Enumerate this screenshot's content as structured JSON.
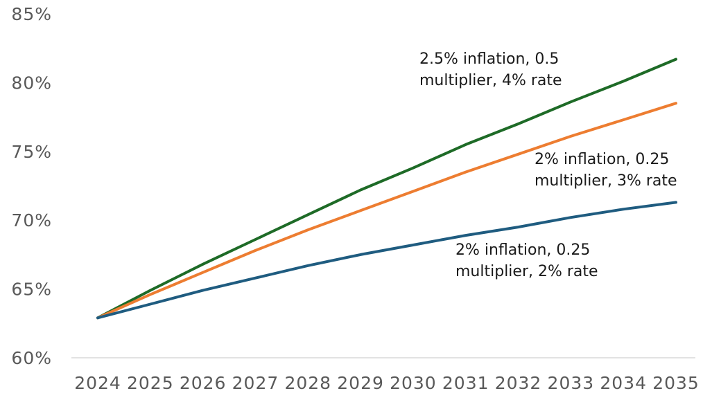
{
  "chart_data": {
    "type": "line",
    "title": "",
    "xlabel": "",
    "ylabel": "",
    "categories": [
      "2024",
      "2025",
      "2026",
      "2027",
      "2028",
      "2029",
      "2030",
      "2031",
      "2032",
      "2033",
      "2034",
      "2035"
    ],
    "ylim": [
      60,
      85
    ],
    "yticks": [
      60,
      65,
      70,
      75,
      80,
      85
    ],
    "ytick_labels": [
      "60%",
      "65%",
      "70%",
      "75%",
      "80%",
      "85%"
    ],
    "grid": false,
    "legend": "none",
    "series": [
      {
        "name": "2.5% inflation, 0.5 multiplier, 4% rate",
        "color": "#1e6b27",
        "values": [
          62.9,
          64.9,
          66.8,
          68.6,
          70.4,
          72.2,
          73.8,
          75.5,
          77.0,
          78.6,
          80.1,
          81.7
        ],
        "label_lines": [
          "2.5% inflation, 0.5",
          "multiplier, 4% rate"
        ]
      },
      {
        "name": "2% inflation, 0.25 multiplier, 3% rate",
        "color": "#ed7d31",
        "values": [
          62.9,
          64.6,
          66.2,
          67.8,
          69.3,
          70.7,
          72.1,
          73.5,
          74.8,
          76.1,
          77.3,
          78.5
        ],
        "label_lines": [
          "2% inflation, 0.25",
          "multiplier, 3% rate"
        ]
      },
      {
        "name": "2% inflation, 0.25 multiplier, 2% rate",
        "color": "#1f5c80",
        "values": [
          62.9,
          63.9,
          64.9,
          65.8,
          66.7,
          67.5,
          68.2,
          68.9,
          69.5,
          70.2,
          70.8,
          71.3
        ],
        "label_lines": [
          "2% inflation, 0.25",
          "multiplier, 2% rate"
        ]
      }
    ]
  }
}
